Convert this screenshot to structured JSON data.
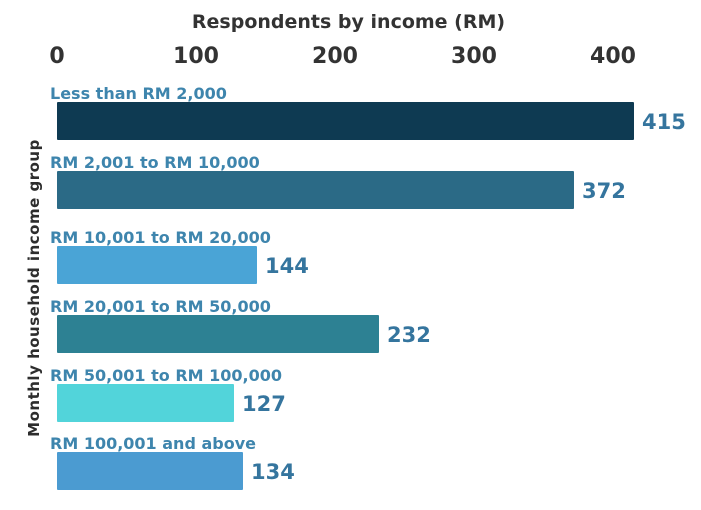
{
  "page": {
    "background": "#ffffff"
  },
  "chart_data": {
    "type": "bar",
    "orientation": "horizontal",
    "title": "Respondents by income (RM)",
    "ylabel": "Monthly household income group",
    "xlabel": "",
    "categories": [
      "Less than RM 2,000",
      "RM 2,001 to RM 10,000",
      "RM 10,001 to RM 20,000",
      "RM 20,001 to RM 50,000",
      "RM 50,001 to RM 100,000",
      "RM 100,001 and above"
    ],
    "values": [
      415,
      372,
      144,
      232,
      127,
      134
    ],
    "xticks": [
      0,
      100,
      200,
      300,
      400
    ],
    "xlim": [
      0,
      460
    ],
    "grid": false,
    "legend": false,
    "bar_colors": [
      "#0e3a52",
      "#2b6a86",
      "#4aa4d6",
      "#2d8193",
      "#52d4da",
      "#4b9bd1"
    ],
    "title_color": "#333333",
    "axis_tick_color": "#333333",
    "category_label_color": "#3e85ad",
    "value_label_color": "#35759e"
  }
}
